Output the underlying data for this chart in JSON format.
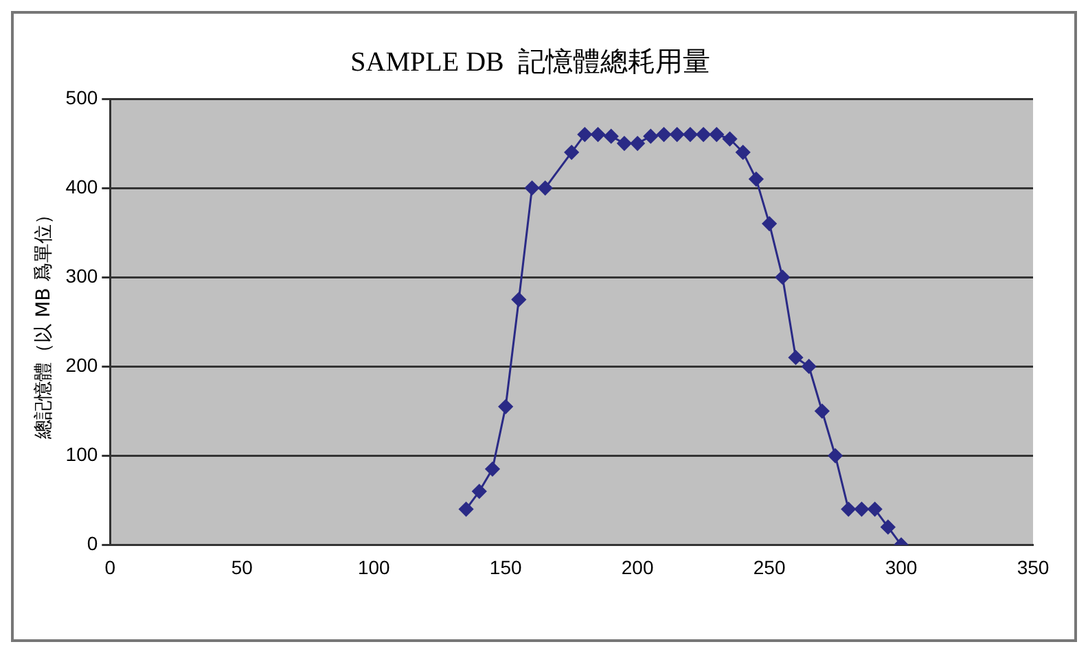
{
  "chart_data": {
    "type": "line",
    "title": "SAMPLE DB  記憶體總耗用量",
    "ylabel": "總記憶體（以 MB 爲單位）",
    "x": [
      135,
      140,
      145,
      150,
      155,
      160,
      165,
      175,
      180,
      185,
      190,
      195,
      200,
      205,
      210,
      215,
      220,
      225,
      230,
      235,
      240,
      245,
      250,
      255,
      260,
      265,
      270,
      275,
      280,
      285,
      290,
      295,
      300
    ],
    "series": [
      {
        "color": "#2a2a86",
        "values": [
          40,
          60,
          85,
          155,
          275,
          400,
          400,
          440,
          460,
          460,
          458,
          450,
          450,
          458,
          460,
          460,
          460,
          460,
          460,
          455,
          440,
          410,
          360,
          300,
          210,
          200,
          150,
          100,
          40,
          40,
          40,
          20,
          0
        ]
      }
    ],
    "xlim": [
      0,
      350
    ],
    "xticks": [
      0,
      50,
      100,
      150,
      200,
      250,
      300,
      350
    ],
    "ylim": [
      0,
      500
    ],
    "yticks": [
      0,
      100,
      200,
      300,
      400,
      500
    ],
    "grid": "y",
    "legend": false,
    "marker": "diamond",
    "line_style": "solid"
  }
}
